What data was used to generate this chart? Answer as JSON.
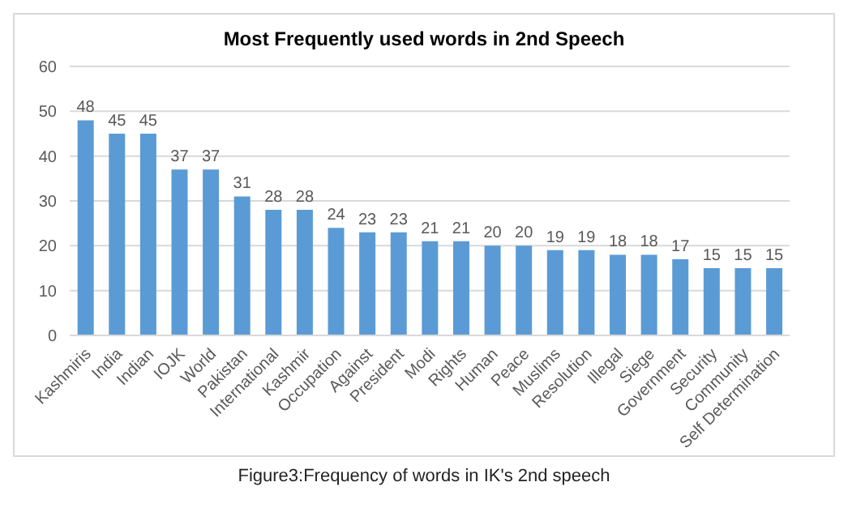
{
  "chart_data": {
    "type": "bar",
    "title": "Most Frequently used words in 2nd Speech",
    "categories": [
      "Kashmiris",
      "India",
      "Indian",
      "IOJK",
      "World",
      "Pakistan",
      "International",
      "Kashmir",
      "Occupation",
      "Against",
      "President",
      "Modi",
      "Rights",
      "Human",
      "Peace",
      "Muslims",
      "Resolution",
      "Illegal",
      "Siege",
      "Government",
      "Security",
      "Community",
      "Self Determination"
    ],
    "values": [
      48,
      45,
      45,
      37,
      37,
      31,
      28,
      28,
      24,
      23,
      23,
      21,
      21,
      20,
      20,
      19,
      19,
      18,
      18,
      17,
      15,
      15,
      15
    ],
    "color": "#5b9bd5",
    "ylim": [
      0,
      60
    ],
    "yticks": [
      0,
      10,
      20,
      30,
      40,
      50,
      60
    ],
    "grid": "y",
    "data_labels": true,
    "annotations": [
      "Figure3:Frequency of words in IK's 2nd speech"
    ]
  }
}
